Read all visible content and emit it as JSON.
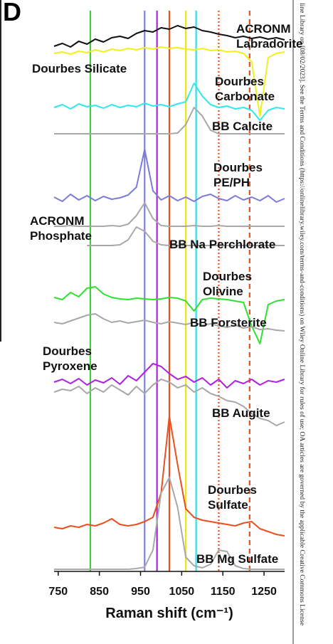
{
  "chart_data": {
    "type": "line",
    "panel_label": "D",
    "side_note": "line Library on [08/02/2023]. See the Terms and Conditions (https://onlinelibrary.wiley.com/terms-and-conditions) on Wiley Online Library for rules of use; OA articles are governed by the applicable Creative Commons License",
    "xlabel": "Raman shift (cm⁻¹)",
    "xlim": [
      740,
      1300
    ],
    "xticks": [
      750,
      850,
      950,
      1050,
      1150,
      1250
    ],
    "ylim": [
      0,
      800
    ],
    "x": [
      740,
      760,
      780,
      800,
      820,
      840,
      860,
      880,
      900,
      920,
      940,
      960,
      980,
      1000,
      1020,
      1040,
      1060,
      1080,
      1100,
      1120,
      1140,
      1160,
      1180,
      1200,
      1220,
      1240,
      1260,
      1280,
      1300
    ],
    "vlines": [
      {
        "x": 828,
        "color": "#3ad13a",
        "style": "solid"
      },
      {
        "x": 960,
        "color": "#8080e0",
        "style": "solid"
      },
      {
        "x": 990,
        "color": "#b020e0",
        "style": "solid"
      },
      {
        "x": 1020,
        "color": "#e8501e",
        "style": "solid"
      },
      {
        "x": 1060,
        "color": "#f0e020",
        "style": "solid"
      },
      {
        "x": 1085,
        "color": "#30e0e8",
        "style": "solid"
      },
      {
        "x": 1140,
        "color": "#e8501e",
        "style": "dotted"
      },
      {
        "x": 1215,
        "color": "#e8501e",
        "style": "dashed"
      }
    ],
    "series": [
      {
        "name": "ACRONM Labradorite",
        "color": "#111111",
        "values": [
          738,
          742,
          737,
          745,
          741,
          748,
          744,
          750,
          752,
          749,
          756,
          760,
          758,
          764,
          762,
          767,
          763,
          765,
          760,
          758,
          755,
          753,
          750,
          752,
          749,
          751,
          748,
          750,
          747
        ]
      },
      {
        "name": "Dourbes Silicate",
        "color": "#f0f020",
        "values": [
          728,
          730,
          727,
          731,
          729,
          733,
          730,
          734,
          732,
          735,
          733,
          736,
          734,
          737,
          735,
          736,
          734,
          733,
          735,
          732,
          733,
          730,
          731,
          728,
          716,
          640,
          722,
          728,
          730
        ]
      },
      {
        "name": "Dourbes Carbonate",
        "color": "#30e8f0",
        "values": [
          652,
          656,
          650,
          657,
          653,
          655,
          651,
          656,
          652,
          655,
          653,
          658,
          654,
          656,
          653,
          657,
          660,
          686,
          668,
          656,
          652,
          654,
          650,
          652,
          648,
          634,
          648,
          652,
          650
        ]
      },
      {
        "name": "BB Calcite",
        "color": "#a8a8a8",
        "values": [
          615,
          615,
          615,
          615,
          615,
          615,
          615,
          615,
          615,
          615,
          615,
          615,
          615,
          615,
          615,
          616,
          628,
          652,
          640,
          620,
          615,
          615,
          615,
          615,
          615,
          615,
          615,
          615,
          615
        ]
      },
      {
        "name": "Dourbes PE/PH",
        "color": "#7b7bd8",
        "values": [
          526,
          520,
          530,
          522,
          528,
          521,
          527,
          523,
          525,
          529,
          540,
          593,
          535,
          522,
          528,
          521,
          526,
          520,
          527,
          530,
          524,
          521,
          528,
          522,
          526,
          521,
          528,
          519,
          524
        ]
      },
      {
        "name": "ACRONM Phosphate",
        "color": "#a8a8a8",
        "values": [
          485,
          485,
          486,
          485,
          485,
          485,
          485,
          486,
          485,
          488,
          500,
          518,
          496,
          486,
          485,
          485,
          485,
          486,
          485,
          485,
          486,
          485,
          485,
          485,
          485,
          485,
          485,
          485,
          485
        ]
      },
      {
        "name": "BB Na Perchlorate",
        "color": "#a8a8a8",
        "values": [
          null,
          null,
          null,
          null,
          458,
          458,
          458,
          458,
          459,
          466,
          484,
          478,
          464,
          459,
          458,
          458,
          458,
          458,
          458,
          458,
          458,
          458,
          458,
          458,
          458,
          458,
          458,
          458,
          458
        ]
      },
      {
        "name": "Dourbes Olivine",
        "color": "#30e030",
        "values": [
          385,
          382,
          392,
          386,
          398,
          400,
          390,
          385,
          383,
          382,
          384,
          383,
          382,
          383,
          385,
          384,
          380,
          366,
          382,
          384,
          383,
          382,
          380,
          378,
          345,
          320,
          375,
          380,
          382
        ]
      },
      {
        "name": "BB Forsterite",
        "color": "#a8a8a8",
        "values": [
          350,
          348,
          352,
          356,
          360,
          362,
          355,
          350,
          352,
          349,
          351,
          353,
          350,
          348,
          351,
          349,
          347,
          350,
          346,
          348,
          345,
          343,
          346,
          342,
          344,
          340,
          341,
          339,
          338
        ]
      },
      {
        "name": "Dourbes Pyroxene",
        "color": "#b020e0",
        "values": [
          266,
          270,
          264,
          271,
          262,
          269,
          265,
          272,
          263,
          275,
          268,
          280,
          292,
          288,
          278,
          270,
          274,
          266,
          272,
          262,
          270,
          258,
          268,
          264,
          270,
          262,
          268,
          266,
          270
        ]
      },
      {
        "name": "BB Augite",
        "color": "#a8a8a8",
        "values": [
          252,
          256,
          254,
          260,
          250,
          258,
          252,
          262,
          255,
          248,
          260,
          250,
          262,
          270,
          266,
          258,
          262,
          252,
          258,
          250,
          246,
          240,
          238,
          232,
          222,
          215,
          212,
          205,
          210
        ]
      },
      {
        "name": "Dourbes Sulfate",
        "color": "#e8501e",
        "values": [
          62,
          60,
          64,
          62,
          66,
          64,
          68,
          74,
          66,
          64,
          66,
          70,
          76,
          110,
          218,
          150,
          88,
          76,
          72,
          70,
          68,
          66,
          64,
          68,
          70,
          60,
          56,
          52,
          50
        ]
      },
      {
        "name": "BB Mg Sulfate",
        "color": "#a8a8a8",
        "values": [
          3,
          3,
          3,
          3,
          3,
          3,
          3,
          3,
          3,
          3,
          4,
          6,
          30,
          110,
          132,
          90,
          20,
          8,
          5,
          10,
          30,
          28,
          8,
          4,
          3,
          3,
          3,
          3,
          3
        ]
      }
    ]
  }
}
